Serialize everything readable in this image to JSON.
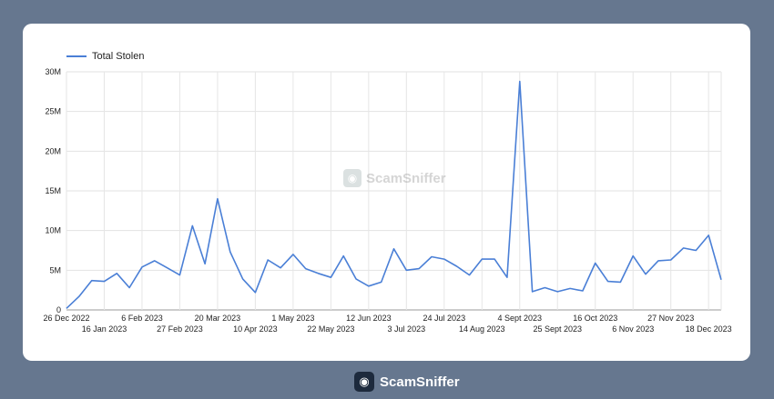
{
  "chart_data": {
    "type": "line",
    "series": [
      {
        "name": "Total Stolen",
        "color": "#4a7fd6",
        "values": [
          0.2,
          1.7,
          3.7,
          3.6,
          4.6,
          2.8,
          5.4,
          6.2,
          5.3,
          4.4,
          10.6,
          5.8,
          14.0,
          7.3,
          3.9,
          2.2,
          6.3,
          5.3,
          7.0,
          5.2,
          4.6,
          4.1,
          6.8,
          3.9,
          3.0,
          3.5,
          7.7,
          5.0,
          5.2,
          6.7,
          6.4,
          5.5,
          4.4,
          6.4,
          6.4,
          4.1,
          28.8,
          2.3,
          2.8,
          2.3,
          2.7,
          2.4,
          5.9,
          3.6,
          3.5,
          6.8,
          4.5,
          6.2,
          6.3,
          7.8,
          7.5,
          9.4,
          3.8
        ]
      }
    ],
    "x_ticks_upper": [
      "26 Dec 2022",
      "6 Feb 2023",
      "20 Mar 2023",
      "1 May 2023",
      "12 Jun 2023",
      "24 Jul 2023",
      "4 Sept 2023",
      "16 Oct 2023",
      "27 Nov 2023"
    ],
    "x_ticks_lower": [
      "16 Jan 2023",
      "27 Feb 2023",
      "10 Apr 2023",
      "22 May 2023",
      "3 Jul 2023",
      "14 Aug 2023",
      "25 Sept 2023",
      "6 Nov 2023",
      "18 Dec 2023"
    ],
    "y_ticks": [
      "0",
      "5M",
      "10M",
      "15M",
      "20M",
      "25M",
      "30M"
    ],
    "ylim": [
      0,
      30
    ],
    "grid": true,
    "legend_position": "top-left"
  },
  "watermark": "ScamSniffer",
  "footer_brand": "ScamSniffer"
}
